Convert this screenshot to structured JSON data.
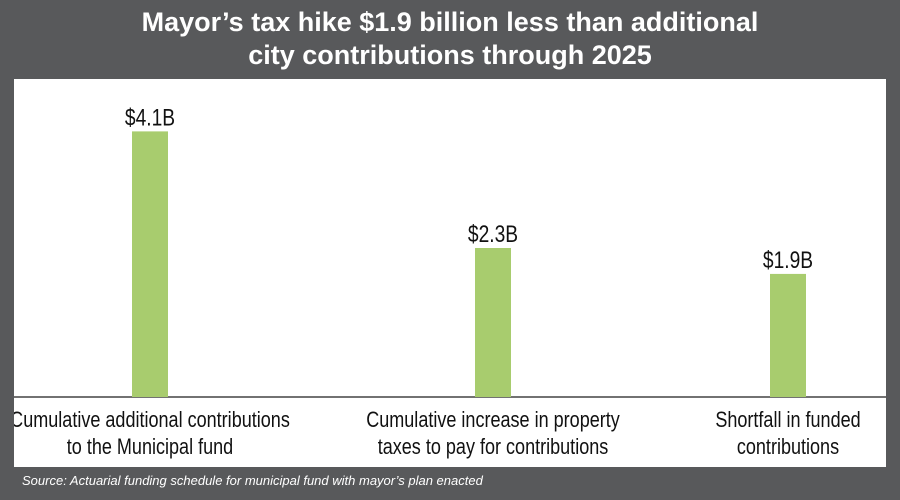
{
  "title_line1": "Mayor’s tax hike $1.9 billion less than additional",
  "title_line2": "city contributions through 2025",
  "source": "Source: Actuarial funding schedule for municipal fund with mayor’s plan enacted",
  "colors": {
    "background": "#58595b",
    "panel": "#ffffff",
    "bar": "#a8cc6e",
    "text": "#111111",
    "axis": "#444444"
  },
  "chart_data": {
    "type": "bar",
    "unit": "billions of dollars",
    "categories": [
      [
        "Cumulative additional contributions",
        "to the Municipal fund"
      ],
      [
        "Cumulative increase in property",
        "taxes to pay for contributions"
      ],
      [
        "Shortfall in funded",
        "contributions"
      ]
    ],
    "values": [
      4.1,
      2.3,
      1.9
    ],
    "data_labels": [
      "$4.1B",
      "$2.3B",
      "$1.9B"
    ],
    "ylim": [
      0,
      4.6
    ],
    "grid": false,
    "legend": "none"
  }
}
